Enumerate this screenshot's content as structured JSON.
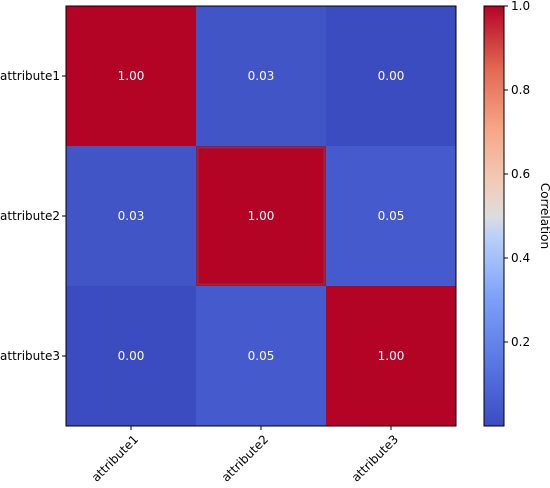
{
  "chart_data": {
    "type": "heatmap",
    "title": "",
    "xlabel": "",
    "ylabel": "",
    "x_categories": [
      "attribute1",
      "attribute2",
      "attribute3"
    ],
    "y_categories": [
      "attribute1",
      "attribute2",
      "attribute3"
    ],
    "values": [
      [
        1.0,
        0.03,
        0.0
      ],
      [
        0.03,
        1.0,
        0.05
      ],
      [
        0.0,
        0.05,
        1.0
      ]
    ],
    "annotations": [
      [
        "1.00",
        "0.03",
        "0.00"
      ],
      [
        "0.03",
        "1.00",
        "0.05"
      ],
      [
        "0.00",
        "0.05",
        "1.00"
      ]
    ],
    "colormap": "coolwarm",
    "colorbar": {
      "label": "Correlation",
      "range": [
        0.0,
        1.0
      ],
      "ticks": [
        0.2,
        0.4,
        0.6,
        0.8,
        1.0
      ],
      "tick_labels": [
        "0.2",
        "0.4",
        "0.6",
        "0.8",
        "1.0"
      ]
    },
    "colors": {
      "low": "#3b4cc0",
      "mid": "#dddddd",
      "high": "#b40426",
      "annotation_text": "#ffffff"
    }
  }
}
